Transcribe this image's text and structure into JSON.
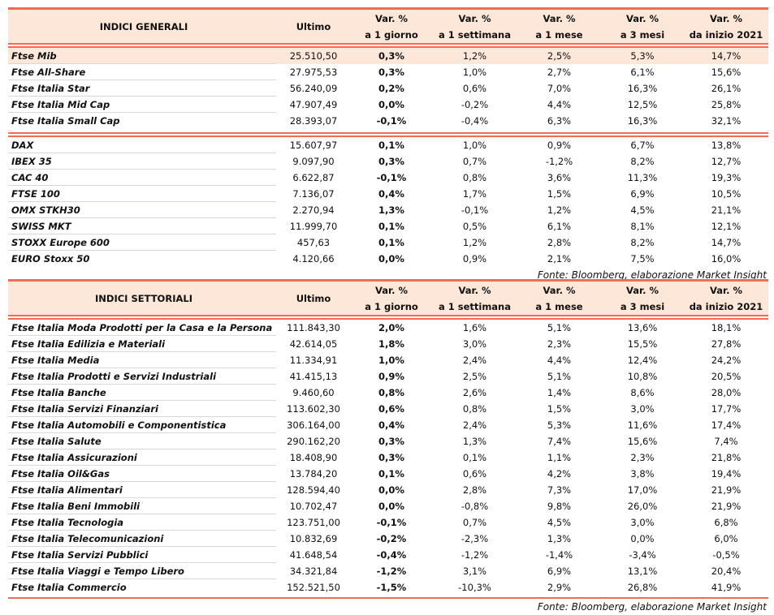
{
  "headers": [
    "Ultimo",
    "Var. %|a 1 giorno",
    "Var. %|a 1 settimana",
    "Var. %|a 1 mese",
    "Var. %|a 3 mesi",
    "Var. %|da inizio 2021"
  ],
  "generali": {
    "title": "INDICI GENERALI",
    "italia": [
      [
        "Ftse Mib",
        "25.510,50",
        "0,3%",
        "1,2%",
        "2,5%",
        "5,3%",
        "14,7%"
      ],
      [
        "Ftse All-Share",
        "27.975,53",
        "0,3%",
        "1,0%",
        "2,7%",
        "6,1%",
        "15,6%"
      ],
      [
        "Ftse Italia Star",
        "56.240,09",
        "0,2%",
        "0,6%",
        "7,0%",
        "16,3%",
        "26,1%"
      ],
      [
        "Ftse Italia Mid Cap",
        "47.907,49",
        "0,0%",
        "-0,2%",
        "4,4%",
        "12,5%",
        "25,8%"
      ],
      [
        "Ftse Italia Small Cap",
        "28.393,07",
        "-0,1%",
        "-0,4%",
        "6,3%",
        "16,3%",
        "32,1%"
      ]
    ],
    "esteri": [
      [
        "DAX",
        "15.607,97",
        "0,1%",
        "1,0%",
        "0,9%",
        "6,7%",
        "13,8%"
      ],
      [
        "IBEX 35",
        "9.097,90",
        "0,3%",
        "0,7%",
        "-1,2%",
        "8,2%",
        "12,7%"
      ],
      [
        "CAC 40",
        "6.622,87",
        "-0,1%",
        "0,8%",
        "3,6%",
        "11,3%",
        "19,3%"
      ],
      [
        "FTSE 100",
        "7.136,07",
        "0,4%",
        "1,7%",
        "1,5%",
        "6,9%",
        "10,5%"
      ],
      [
        "OMX STKH30",
        "2.270,94",
        "1,3%",
        "-0,1%",
        "1,2%",
        "4,5%",
        "21,1%"
      ],
      [
        "SWISS MKT",
        "11.999,70",
        "0,1%",
        "0,5%",
        "6,1%",
        "8,1%",
        "12,1%"
      ],
      [
        "STOXX Europe 600",
        "457,63",
        "0,1%",
        "1,2%",
        "2,8%",
        "8,2%",
        "14,7%"
      ],
      [
        "EURO Stoxx 50",
        "4.120,66",
        "0,0%",
        "0,9%",
        "2,1%",
        "7,5%",
        "16,0%"
      ]
    ],
    "source": "Fonte: Bloomberg, elaborazione Market Insight"
  },
  "settoriali": {
    "title": "INDICI SETTORIALI",
    "rows": [
      [
        "Ftse Italia Moda Prodotti per la Casa e la Persona",
        "111.843,30",
        "2,0%",
        "1,6%",
        "5,1%",
        "13,6%",
        "18,1%"
      ],
      [
        "Ftse Italia Edilizia e Materiali",
        "42.614,05",
        "1,8%",
        "3,0%",
        "2,3%",
        "15,5%",
        "27,8%"
      ],
      [
        "Ftse Italia Media",
        "11.334,91",
        "1,0%",
        "2,4%",
        "4,4%",
        "12,4%",
        "24,2%"
      ],
      [
        "Ftse Italia Prodotti e Servizi Industriali",
        "41.415,13",
        "0,9%",
        "2,5%",
        "5,1%",
        "10,8%",
        "20,5%"
      ],
      [
        "Ftse Italia Banche",
        "9.460,60",
        "0,8%",
        "2,6%",
        "1,4%",
        "8,6%",
        "28,0%"
      ],
      [
        "Ftse Italia Servizi Finanziari",
        "113.602,30",
        "0,6%",
        "0,8%",
        "1,5%",
        "3,0%",
        "17,7%"
      ],
      [
        "Ftse Italia Automobili e Componentistica",
        "306.164,00",
        "0,4%",
        "2,4%",
        "5,3%",
        "11,6%",
        "17,4%"
      ],
      [
        "Ftse Italia Salute",
        "290.162,20",
        "0,3%",
        "1,3%",
        "7,4%",
        "15,6%",
        "7,4%"
      ],
      [
        "Ftse Italia Assicurazioni",
        "18.408,90",
        "0,3%",
        "0,1%",
        "1,1%",
        "2,3%",
        "21,8%"
      ],
      [
        "Ftse Italia Oil&Gas",
        "13.784,20",
        "0,1%",
        "0,6%",
        "4,2%",
        "3,8%",
        "19,4%"
      ],
      [
        "Ftse Italia Alimentari",
        "128.594,40",
        "0,0%",
        "2,8%",
        "7,3%",
        "17,0%",
        "21,9%"
      ],
      [
        "Ftse Italia Beni Immobili",
        "10.702,47",
        "0,0%",
        "-0,8%",
        "9,8%",
        "26,0%",
        "21,9%"
      ],
      [
        "Ftse Italia Tecnologia",
        "123.751,00",
        "-0,1%",
        "0,7%",
        "4,5%",
        "3,0%",
        "6,8%"
      ],
      [
        "Ftse Italia Telecomunicazioni",
        "10.832,69",
        "-0,2%",
        "-2,3%",
        "1,3%",
        "0,0%",
        "6,0%"
      ],
      [
        "Ftse Italia Servizi Pubblici",
        "41.648,54",
        "-0,4%",
        "-1,2%",
        "-1,4%",
        "-3,4%",
        "-0,5%"
      ],
      [
        "Ftse Italia Viaggi e Tempo Libero",
        "34.321,84",
        "-1,2%",
        "3,1%",
        "6,9%",
        "13,1%",
        "20,4%"
      ],
      [
        "Ftse Italia Commercio",
        "152.521,50",
        "-1,5%",
        "-10,3%",
        "2,9%",
        "26,8%",
        "41,9%"
      ]
    ],
    "source": "Fonte: Bloomberg, elaborazione Market Insight"
  },
  "colors": {
    "accent": "#f26b52",
    "header_bg": "#fce7d9"
  }
}
